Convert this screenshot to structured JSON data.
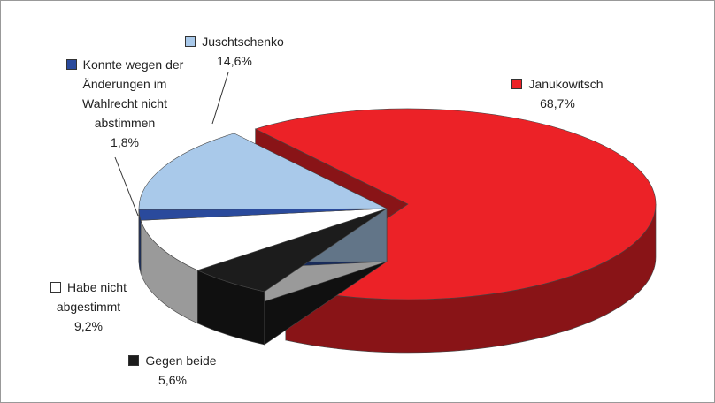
{
  "chart_data": {
    "type": "pie3d",
    "categories": [
      "Janukowitsch",
      "Gegen beide",
      "Habe nicht abgestimmt",
      "Konnte wegen der Änderungen im Wahlrecht nicht abstimmen",
      "Juschtschenko"
    ],
    "values": [
      68.7,
      5.6,
      9.2,
      1.8,
      14.6
    ],
    "value_labels": [
      "68,7%",
      "5,6%",
      "9,2%",
      "1,8%",
      "14,6%"
    ],
    "colors": [
      "#ec2227",
      "#1c1c1c",
      "#ffffff",
      "#2a4a9c",
      "#a9c9ea"
    ]
  }
}
